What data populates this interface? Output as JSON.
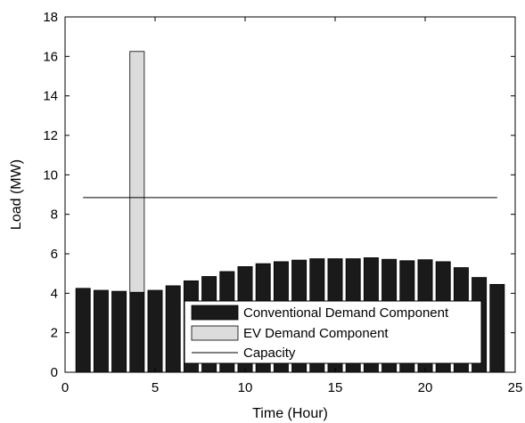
{
  "chart_data": {
    "type": "bar",
    "title": "",
    "xlabel": "Time (Hour)",
    "ylabel": "Load (MW)",
    "xlim": [
      0,
      25
    ],
    "ylim": [
      0,
      18
    ],
    "xticks": [
      0,
      5,
      10,
      15,
      20,
      25
    ],
    "yticks": [
      0,
      2,
      4,
      6,
      8,
      10,
      12,
      14,
      16,
      18
    ],
    "grid": false,
    "stacked": true,
    "x": [
      1,
      2,
      3,
      4,
      5,
      6,
      7,
      8,
      9,
      10,
      11,
      12,
      13,
      14,
      15,
      16,
      17,
      18,
      19,
      20,
      21,
      22,
      23,
      24
    ],
    "series": [
      {
        "name": "Conventional Demand Component",
        "color": "#1a1a1a",
        "values": [
          4.25,
          4.15,
          4.1,
          4.05,
          4.15,
          4.38,
          4.63,
          4.85,
          5.1,
          5.35,
          5.5,
          5.6,
          5.68,
          5.75,
          5.75,
          5.75,
          5.8,
          5.72,
          5.65,
          5.7,
          5.6,
          5.3,
          4.8,
          4.45
        ]
      },
      {
        "name": "EV Demand Component",
        "color": "#dcdcdc",
        "values": [
          0,
          0,
          0,
          12.2,
          0,
          0,
          0,
          0,
          0,
          0,
          0,
          0,
          0,
          0,
          0,
          0,
          0,
          0,
          0,
          0,
          0,
          0,
          0,
          0
        ]
      }
    ],
    "lines": [
      {
        "name": "Capacity",
        "color": "#000000",
        "y": 8.85,
        "x_range": [
          1,
          24
        ]
      }
    ],
    "legend_position": "bottom-right"
  }
}
